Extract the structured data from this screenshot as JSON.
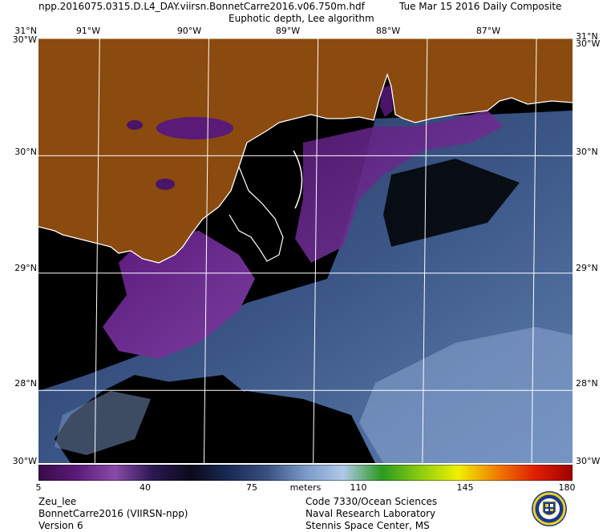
{
  "header": {
    "filename": "npp.2016075.0315.D.L4_DAY.viirsn.BonnetCarre2016.v06.750m.hdf",
    "date_label": "Tue Mar 15 2016 Daily Composite",
    "product": "Euphotic depth, Lee algorithm"
  },
  "map": {
    "lat_labels": [
      "31°N",
      "30°N",
      "29°N",
      "28°N"
    ],
    "lat_values": [
      31,
      30,
      29,
      28
    ],
    "lat_edge_labels": [
      "30°W",
      "30°W"
    ],
    "lat_edge_bottom": [
      "30°W",
      "30°W"
    ],
    "lon_labels": [
      "91°W",
      "90°W",
      "89°W",
      "88°W",
      "87°W"
    ],
    "lon_values": [
      -91,
      -90,
      -89,
      -88,
      -87
    ],
    "extent": {
      "lon_min": -91.56,
      "lon_max": -86.67,
      "lat_min": 27.38,
      "lat_max": 31.0
    },
    "colors": {
      "land": "#8b4a0e",
      "nodata": "#000000",
      "grid": "#ffffff",
      "coast": "#ffffff"
    }
  },
  "colorbar": {
    "tick_labels": [
      "5",
      "40",
      "75",
      "110",
      "145",
      "180"
    ],
    "tick_values": [
      5,
      40,
      75,
      110,
      145,
      180
    ],
    "units": "meters",
    "range": [
      5,
      180
    ],
    "stops": [
      "#3a0a48",
      "#5a1a78",
      "#8a4aa8",
      "#2a1850",
      "#0a0a1a",
      "#1a2a55",
      "#3a5080",
      "#7a9ac8",
      "#b0c8e8",
      "#2a9a20",
      "#8acc10",
      "#f0f000",
      "#f08000",
      "#e02000",
      "#a00000"
    ]
  },
  "footer": {
    "left1": "Zeu_lee",
    "left2": "BonnetCarre2016 (VIIRSN-npp)",
    "left3": "Version 6",
    "right1": "Code 7330/Ocean Sciences",
    "right2": "Naval Research Laboratory",
    "right3": "Stennis Space Center, MS"
  },
  "logo": {
    "name": "nrl-seal-icon"
  }
}
